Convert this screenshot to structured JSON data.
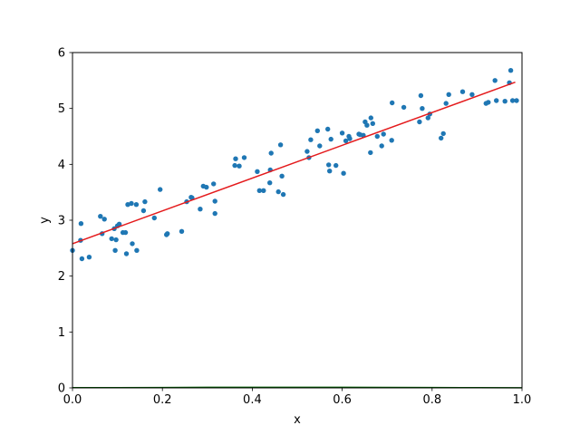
{
  "chart_data": {
    "type": "scatter",
    "xlabel": "x",
    "ylabel": "y",
    "xlim": [
      0,
      1
    ],
    "ylim": [
      0,
      6
    ],
    "xticks": [
      "0.0",
      "0.2",
      "0.4",
      "0.6",
      "0.8",
      "1.0"
    ],
    "yticks": [
      "0",
      "1",
      "2",
      "3",
      "4",
      "5",
      "6"
    ],
    "grid": false,
    "colors": {
      "points": "#1f77b4",
      "fit_line": "#e41a1c",
      "baseline": "#006400"
    },
    "series": [
      {
        "kind": "scatter",
        "points": [
          [
            0.0,
            2.46
          ],
          [
            0.018,
            2.64
          ],
          [
            0.019,
            2.94
          ],
          [
            0.021,
            2.31
          ],
          [
            0.037,
            2.34
          ],
          [
            0.062,
            3.07
          ],
          [
            0.066,
            2.76
          ],
          [
            0.071,
            3.02
          ],
          [
            0.087,
            2.67
          ],
          [
            0.093,
            2.85
          ],
          [
            0.095,
            2.46
          ],
          [
            0.097,
            2.65
          ],
          [
            0.1,
            2.9
          ],
          [
            0.104,
            2.93
          ],
          [
            0.112,
            2.78
          ],
          [
            0.118,
            2.78
          ],
          [
            0.12,
            2.4
          ],
          [
            0.123,
            3.28
          ],
          [
            0.131,
            3.3
          ],
          [
            0.133,
            2.58
          ],
          [
            0.142,
            3.28
          ],
          [
            0.143,
            2.46
          ],
          [
            0.158,
            3.17
          ],
          [
            0.161,
            3.33
          ],
          [
            0.182,
            3.04
          ],
          [
            0.195,
            3.55
          ],
          [
            0.209,
            2.74
          ],
          [
            0.211,
            2.76
          ],
          [
            0.243,
            2.8
          ],
          [
            0.254,
            3.33
          ],
          [
            0.264,
            3.41
          ],
          [
            0.266,
            3.4
          ],
          [
            0.284,
            3.2
          ],
          [
            0.291,
            3.61
          ],
          [
            0.298,
            3.59
          ],
          [
            0.314,
            3.65
          ],
          [
            0.317,
            3.34
          ],
          [
            0.317,
            3.12
          ],
          [
            0.361,
            3.98
          ],
          [
            0.363,
            4.1
          ],
          [
            0.371,
            3.97
          ],
          [
            0.382,
            4.12
          ],
          [
            0.411,
            3.87
          ],
          [
            0.416,
            3.53
          ],
          [
            0.425,
            3.53
          ],
          [
            0.439,
            3.67
          ],
          [
            0.44,
            3.9
          ],
          [
            0.442,
            4.2
          ],
          [
            0.458,
            3.51
          ],
          [
            0.463,
            4.35
          ],
          [
            0.466,
            3.79
          ],
          [
            0.469,
            3.46
          ],
          [
            0.522,
            4.23
          ],
          [
            0.526,
            4.12
          ],
          [
            0.53,
            4.44
          ],
          [
            0.545,
            4.6
          ],
          [
            0.55,
            4.33
          ],
          [
            0.568,
            4.63
          ],
          [
            0.57,
            3.99
          ],
          [
            0.572,
            3.88
          ],
          [
            0.575,
            4.45
          ],
          [
            0.586,
            3.98
          ],
          [
            0.6,
            4.56
          ],
          [
            0.603,
            3.84
          ],
          [
            0.608,
            4.42
          ],
          [
            0.615,
            4.5
          ],
          [
            0.617,
            4.46
          ],
          [
            0.637,
            4.54
          ],
          [
            0.64,
            4.53
          ],
          [
            0.647,
            4.52
          ],
          [
            0.651,
            4.76
          ],
          [
            0.655,
            4.7
          ],
          [
            0.663,
            4.21
          ],
          [
            0.664,
            4.83
          ],
          [
            0.668,
            4.73
          ],
          [
            0.678,
            4.5
          ],
          [
            0.688,
            4.33
          ],
          [
            0.692,
            4.54
          ],
          [
            0.71,
            4.43
          ],
          [
            0.711,
            5.1
          ],
          [
            0.737,
            5.02
          ],
          [
            0.772,
            4.76
          ],
          [
            0.775,
            5.23
          ],
          [
            0.778,
            5.0
          ],
          [
            0.791,
            4.83
          ],
          [
            0.795,
            4.9
          ],
          [
            0.82,
            4.47
          ],
          [
            0.825,
            4.55
          ],
          [
            0.831,
            5.09
          ],
          [
            0.837,
            5.25
          ],
          [
            0.868,
            5.3
          ],
          [
            0.889,
            5.25
          ],
          [
            0.92,
            5.09
          ],
          [
            0.925,
            5.11
          ],
          [
            0.94,
            5.5
          ],
          [
            0.943,
            5.14
          ],
          [
            0.962,
            5.13
          ],
          [
            0.972,
            5.46
          ],
          [
            0.975,
            5.68
          ],
          [
            0.979,
            5.14
          ],
          [
            0.988,
            5.14
          ]
        ]
      },
      {
        "kind": "line",
        "x": [
          0.0,
          0.985
        ],
        "y": [
          2.58,
          5.47
        ]
      },
      {
        "kind": "line",
        "x": [
          0.0,
          0.1,
          0.2,
          0.3,
          0.4,
          0.5,
          0.6,
          0.7,
          0.8,
          0.9,
          1.0
        ],
        "y": [
          0.003,
          0.005,
          0.007,
          0.009,
          0.01,
          0.01,
          0.009,
          0.008,
          0.006,
          0.004,
          0.002
        ]
      }
    ]
  }
}
